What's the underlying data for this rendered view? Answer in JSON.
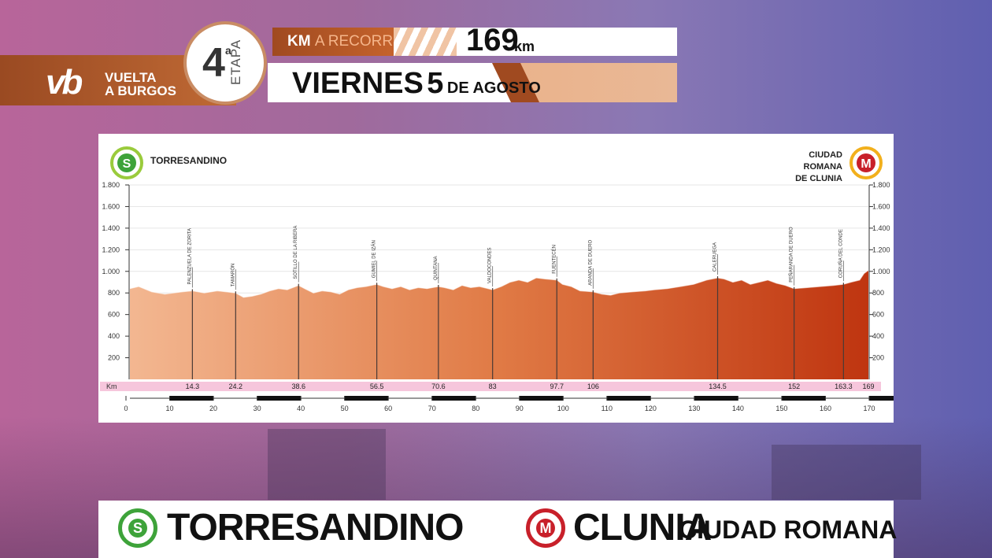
{
  "header": {
    "brand_line1": "VUELTA",
    "brand_line2": "A BURGOS",
    "logo_mark": "vb",
    "stage_number": "4",
    "stage_superscript": "a",
    "stage_word": "ETAPA",
    "km_label_white": "KM",
    "km_label_orange": "A RECORRER",
    "km_value": "169",
    "km_unit": "km",
    "date_word": "VIERNES",
    "date_day": "5",
    "date_rest": "DE AGOSTO"
  },
  "footer": {
    "start_icon": "S",
    "start_name": "TORRESANDINO",
    "finish_icon": "M",
    "finish_big": "CLUNIA",
    "finish_small": "CIUDAD ROMANA"
  },
  "colors": {
    "start_green": "#3ea33a",
    "finish_red": "#c8202a",
    "profile_light": "#f2b08a",
    "profile_dark": "#c13a12",
    "km_strip": "#f6c6dc"
  },
  "chart_data": {
    "type": "area",
    "start_label": "TORRESANDINO",
    "finish_label": [
      "CIUDAD",
      "ROMANA",
      "DE CLUNIA"
    ],
    "start_icon": "S",
    "finish_icon": "M",
    "y_ticks": [
      "1.800",
      "1.600",
      "1.400",
      "1.200",
      "1.000",
      "800",
      "600",
      "400",
      "200"
    ],
    "y_tick_values": [
      1800,
      1600,
      1400,
      1200,
      1000,
      800,
      600,
      400,
      200
    ],
    "ylim": [
      0,
      1800
    ],
    "xlim": [
      0,
      170
    ],
    "x_axis_ticks": [
      0,
      10,
      20,
      30,
      40,
      50,
      60,
      70,
      80,
      90,
      100,
      110,
      120,
      130,
      140,
      150,
      160,
      170
    ],
    "km_strip_label": "Km",
    "profile_x": [
      0,
      2,
      5,
      8,
      10,
      12,
      14.3,
      17,
      20,
      22,
      24.2,
      26,
      28,
      30,
      32,
      34,
      36,
      38.6,
      40,
      42,
      44,
      46,
      48,
      50,
      52,
      54,
      56.5,
      58,
      60,
      62,
      64,
      66,
      68,
      70.6,
      72,
      74,
      76,
      78,
      80,
      83,
      85,
      87,
      89,
      91,
      93,
      95,
      97.7,
      99,
      101,
      103,
      106,
      108,
      110,
      112,
      115,
      118,
      120,
      123,
      126,
      129,
      132,
      134.5,
      136,
      138,
      140,
      142,
      144,
      146,
      148,
      150,
      152,
      155,
      158,
      161,
      163.3,
      165,
      167,
      168,
      169
    ],
    "profile_y": [
      840,
      860,
      810,
      790,
      800,
      810,
      820,
      800,
      820,
      810,
      800,
      760,
      770,
      790,
      820,
      840,
      830,
      870,
      840,
      800,
      820,
      810,
      790,
      830,
      850,
      860,
      880,
      860,
      840,
      860,
      830,
      850,
      840,
      860,
      850,
      830,
      870,
      850,
      860,
      830,
      860,
      900,
      920,
      900,
      940,
      930,
      920,
      880,
      860,
      820,
      810,
      790,
      780,
      800,
      810,
      820,
      830,
      840,
      860,
      880,
      920,
      940,
      930,
      900,
      920,
      880,
      900,
      920,
      890,
      870,
      840,
      850,
      860,
      870,
      880,
      900,
      920,
      980,
      1010
    ],
    "waypoints": [
      {
        "km": 14.3,
        "label": "14.3",
        "name": "PALENZUELA DE ZORITA"
      },
      {
        "km": 24.2,
        "label": "24.2",
        "name": "TAMARÓN"
      },
      {
        "km": 38.6,
        "label": "38.6",
        "name": "SOTILLO DE LA RIBERA"
      },
      {
        "km": 56.5,
        "label": "56.5",
        "name": "GUMIEL DE IZÁN"
      },
      {
        "km": 70.6,
        "label": "70.6",
        "name": "QUINTANA"
      },
      {
        "km": 83,
        "label": "83",
        "name": "VALDOCONDES"
      },
      {
        "km": 97.7,
        "label": "97.7",
        "name": "FUENTECÉN"
      },
      {
        "km": 106,
        "label": "106",
        "name": "ARANDA DE DUERO"
      },
      {
        "km": 134.5,
        "label": "134.5",
        "name": "CALERUEGA"
      },
      {
        "km": 152,
        "label": "152",
        "name": "PEÑARANDA DE DUERO"
      },
      {
        "km": 163.3,
        "label": "163.3",
        "name": "CORUÑA DEL CONDE"
      },
      {
        "km": 169,
        "label": "169",
        "name": ""
      }
    ]
  }
}
